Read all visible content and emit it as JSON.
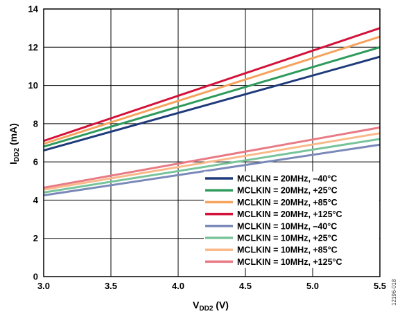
{
  "chart_data": {
    "type": "line",
    "xlabel_main": "V",
    "xlabel_sub": "DD2",
    "xlabel_unit": " (V)",
    "ylabel_main": "I",
    "ylabel_sub": "DD2",
    "ylabel_unit": " (mA)",
    "xlim": [
      3.0,
      5.5
    ],
    "ylim": [
      0,
      14
    ],
    "x_ticks": [
      "3.0",
      "3.5",
      "4.0",
      "4.5",
      "5.0",
      "5.5"
    ],
    "y_ticks": [
      "0",
      "2",
      "4",
      "6",
      "8",
      "10",
      "12",
      "14"
    ],
    "grid": true,
    "legend_position": "bottom-right",
    "series": [
      {
        "name": "MCLKIN = 20MHz, –40°C",
        "color": "#1f3a7a",
        "x": [
          3.0,
          5.5
        ],
        "y": [
          6.6,
          11.5
        ]
      },
      {
        "name": "MCLKIN = 20MHz, +25°C",
        "color": "#2e9a5c",
        "x": [
          3.0,
          5.5
        ],
        "y": [
          6.8,
          12.0
        ]
      },
      {
        "name": "MCLKIN = 20MHz, +85°C",
        "color": "#f5a25d",
        "x": [
          3.0,
          5.5
        ],
        "y": [
          6.95,
          12.55
        ]
      },
      {
        "name": "MCLKIN = 20MHz, +125°C",
        "color": "#d3123a",
        "x": [
          3.0,
          5.5
        ],
        "y": [
          7.1,
          13.0
        ]
      },
      {
        "name": "MCLKIN = 10MHz, –40°C",
        "color": "#7a89b8",
        "x": [
          3.0,
          5.5
        ],
        "y": [
          4.25,
          6.9
        ]
      },
      {
        "name": "MCLKIN = 10MHz, +25°C",
        "color": "#78c49a",
        "x": [
          3.0,
          5.5
        ],
        "y": [
          4.4,
          7.2
        ]
      },
      {
        "name": "MCLKIN = 10MHz, +85°C",
        "color": "#f9b98a",
        "x": [
          3.0,
          5.5
        ],
        "y": [
          4.55,
          7.5
        ]
      },
      {
        "name": "MCLKIN = 10MHz, +125°C",
        "color": "#e87a86",
        "x": [
          3.0,
          5.5
        ],
        "y": [
          4.65,
          7.8
        ]
      }
    ]
  },
  "side_label": "12196-018"
}
